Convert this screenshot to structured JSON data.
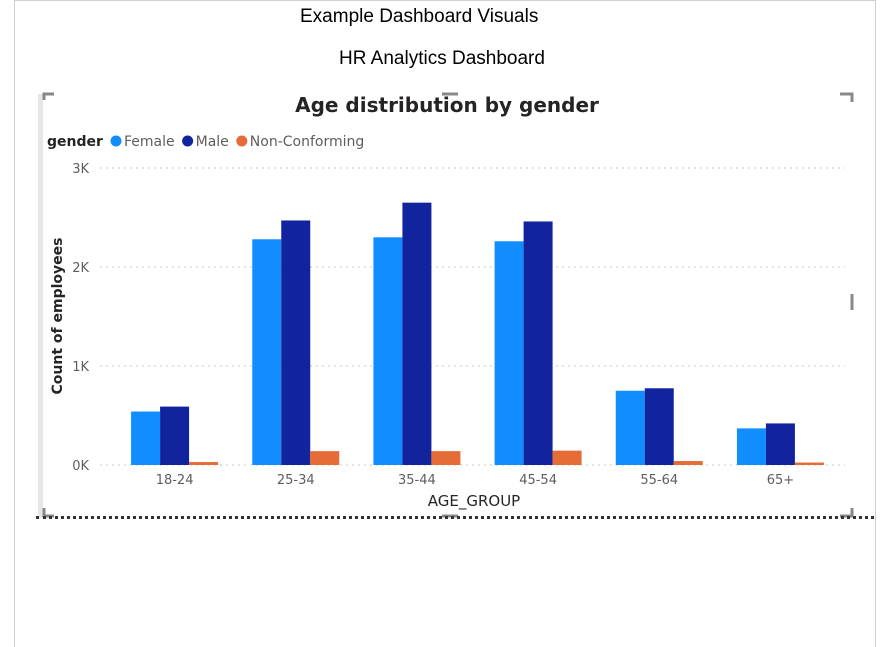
{
  "page": {
    "title": "Example Dashboard Visuals",
    "subtitle": "HR Analytics Dashboard"
  },
  "colors": {
    "female": "#118dff",
    "male": "#12239e",
    "non_conforming": "#e66c37",
    "grid": "#c8c8c8",
    "axis_text": "#605e5c"
  },
  "chart_data": {
    "type": "bar",
    "title": "Age distribution by gender",
    "legend_title": "gender",
    "legend_position": "top-left",
    "xlabel": "AGE_GROUP",
    "ylabel": "Count of employees",
    "categories": [
      "18-24",
      "25-34",
      "35-44",
      "45-54",
      "55-64",
      "65+"
    ],
    "series": [
      {
        "name": "Female",
        "values": [
          540,
          2280,
          2300,
          2260,
          750,
          370
        ]
      },
      {
        "name": "Male",
        "values": [
          590,
          2470,
          2650,
          2460,
          775,
          420
        ]
      },
      {
        "name": "Non-Conforming",
        "values": [
          30,
          140,
          140,
          145,
          40,
          25
        ]
      }
    ],
    "ylim": [
      0,
      3000
    ],
    "yticks": [
      0,
      1000,
      2000,
      3000
    ],
    "ytick_labels": [
      "0K",
      "1K",
      "2K",
      "3K"
    ],
    "grid": true
  }
}
